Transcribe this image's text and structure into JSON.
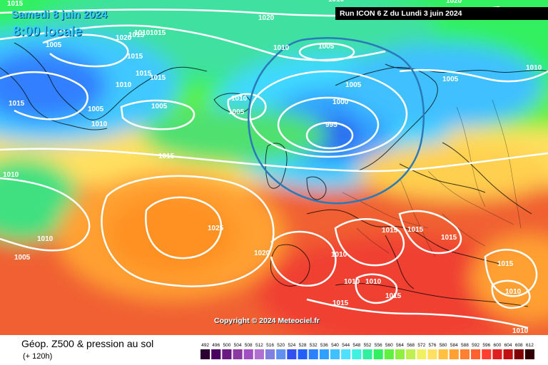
{
  "header": {
    "date": "Samedi 8 juin 2024",
    "local_time": "8:00 locale",
    "run_info": "Run ICON 6 Z du Lundi 3 juin 2024"
  },
  "copyright": "Copyright © 2024 Meteociel.fr",
  "footer": {
    "title": "Géop. Z500 & pression au sol",
    "subtitle": "(+ 120h)"
  },
  "legend": {
    "values": [
      "492",
      "496",
      "500",
      "504",
      "508",
      "512",
      "516",
      "520",
      "524",
      "528",
      "532",
      "536",
      "540",
      "544",
      "548",
      "552",
      "556",
      "560",
      "564",
      "568",
      "572",
      "576",
      "580",
      "584",
      "588",
      "592",
      "596",
      "600",
      "604",
      "608",
      "612"
    ],
    "colors": [
      "#2a0030",
      "#4a0060",
      "#6a1a80",
      "#8a3aa0",
      "#a050c0",
      "#b070d0",
      "#8080e0",
      "#6090f0",
      "#3050f0",
      "#2060f8",
      "#2a80ff",
      "#30a0ff",
      "#40c0ff",
      "#50e0ff",
      "#40f0e0",
      "#30f0a0",
      "#30f060",
      "#60f040",
      "#90f040",
      "#c0f050",
      "#f0f060",
      "#ffe060",
      "#ffc040",
      "#ffa030",
      "#ff8030",
      "#ff6030",
      "#ff4030",
      "#e02020",
      "#c01010",
      "#800000",
      "#300000"
    ]
  },
  "pressure_labels": [
    "1015",
    "1020",
    "1005",
    "1015",
    "1010",
    "1020",
    "1015",
    "1015",
    "1010",
    "1015",
    "1015",
    "1005",
    "1010",
    "1005",
    "1010",
    "1005",
    "1010",
    "1010",
    "1005",
    "1000",
    "995",
    "1005",
    "1005",
    "1020",
    "1015",
    "1010",
    "1005",
    "1025",
    "1020",
    "1010",
    "1015",
    "1015",
    "1015",
    "1010",
    "1010",
    "1015",
    "1015",
    "1015",
    "1010",
    "1010",
    "1015",
    "1010",
    "1010"
  ],
  "colors": {
    "banner_bg": "#000000",
    "title_color": "#33ccff",
    "isobar_color": "#ffffff",
    "highlight_contour": "#2a7ab8"
  }
}
